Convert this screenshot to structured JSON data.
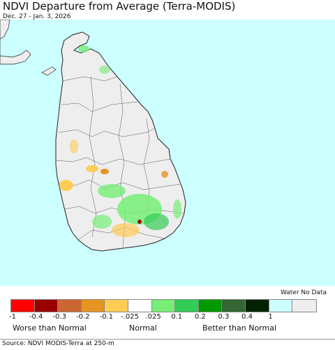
{
  "map": {
    "title": "NDVI Departure from Average (Terra-MODIS)",
    "subtitle": "Dec. 27 - Jan. 3, 2026",
    "colors": {
      "water": "#ccffff",
      "land": "#eeeeee",
      "border": "#222222"
    }
  },
  "legend": {
    "water_label": "Water No Data",
    "colors": [
      "#ff0000",
      "#990000",
      "#cc6633",
      "#e69422",
      "#ffcc55",
      "#ffffff",
      "#77ee77",
      "#33cc55",
      "#009900",
      "#336633",
      "#002200",
      "#ccffff",
      "#eeeeee"
    ],
    "ticks": [
      "-1",
      "-0.4",
      "-0.3",
      "-0.2",
      "-0.1",
      "-.025",
      ".025",
      "0.1",
      "0.2",
      "0.3",
      "0.4",
      "1"
    ],
    "categories": {
      "worse": "Worse than Normal",
      "normal": "Normal",
      "better": "Better than Normal"
    }
  },
  "footer": {
    "source": "Source: NDVI MODIS-Terra at 250-m"
  }
}
